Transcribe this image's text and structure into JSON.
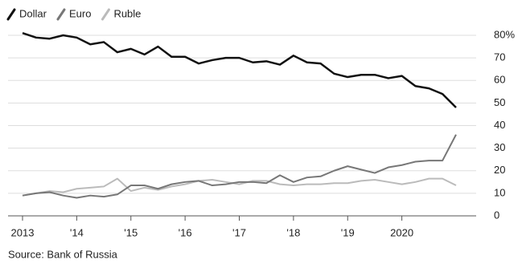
{
  "chart_data": {
    "type": "line",
    "x": [
      2013,
      2013.25,
      2013.5,
      2013.75,
      2014,
      2014.25,
      2014.5,
      2014.75,
      2015,
      2015.25,
      2015.5,
      2015.75,
      2016,
      2016.25,
      2016.5,
      2016.75,
      2017,
      2017.25,
      2017.5,
      2017.75,
      2018,
      2018.25,
      2018.5,
      2018.75,
      2019,
      2019.25,
      2019.5,
      2019.75,
      2020,
      2020.25,
      2020.5,
      2020.75,
      2021
    ],
    "series": [
      {
        "name": "Dollar",
        "color": "#111111",
        "values": [
          81,
          79,
          78.5,
          80,
          79,
          76,
          77,
          72.5,
          74,
          71.5,
          75,
          70.5,
          70.5,
          67.5,
          69,
          70,
          70,
          68,
          68.5,
          67,
          71,
          68,
          67.5,
          63,
          61.5,
          62.5,
          62.5,
          61,
          62,
          57.5,
          56.5,
          54,
          48
        ]
      },
      {
        "name": "Euro",
        "color": "#777777",
        "values": [
          9,
          10,
          10.5,
          9,
          8,
          9,
          8.5,
          9.5,
          13.5,
          13.5,
          12,
          14,
          15,
          15.5,
          13.5,
          14,
          15,
          15,
          14.5,
          18,
          15,
          17,
          17.5,
          20,
          22,
          20.5,
          19,
          21.5,
          22.5,
          24,
          24.5,
          24.5,
          36
        ]
      },
      {
        "name": "Ruble",
        "color": "#bbbbbb",
        "values": [
          9,
          10,
          11,
          10.5,
          12,
          12.5,
          13,
          16.5,
          11,
          12.5,
          11.5,
          13,
          14,
          15.5,
          16,
          15,
          14,
          15.5,
          15.5,
          14,
          13.5,
          14,
          14,
          14.5,
          14.5,
          15.5,
          16,
          15,
          14,
          15,
          16.5,
          16.5,
          13.5
        ]
      }
    ],
    "xlim": [
      2013,
      2021
    ],
    "xticks": [
      2013,
      {
        "value": 2014,
        "label": "'14"
      },
      {
        "value": 2015,
        "label": "'15"
      },
      {
        "value": 2016,
        "label": "'16"
      },
      {
        "value": 2017,
        "label": "'17"
      },
      {
        "value": 2018,
        "label": "'18"
      },
      {
        "value": 2019,
        "label": "'19"
      },
      2020
    ],
    "ylim": [
      0,
      80
    ],
    "yticks": [
      0,
      10,
      20,
      30,
      40,
      50,
      60,
      70,
      {
        "value": 80,
        "label": "80%"
      }
    ],
    "grid": true,
    "legend": "top-left",
    "source": "Source: Bank of Russia"
  }
}
